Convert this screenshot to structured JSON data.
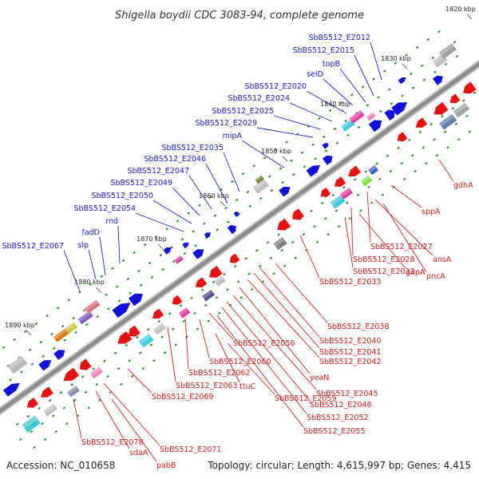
{
  "title": "Shigella boydii CDC 3083-94, complete genome",
  "accession": "Accession: NC_010658",
  "topology": "Topology: circular; Length: 4,615,997 bp; Genes: 4,415",
  "positions": [
    "1820 kbp",
    "1830 kbp",
    "1840 kbp",
    "1850 kbp",
    "1860 kbp",
    "1870 kbp",
    "1880 kbp",
    "1890 kbp"
  ],
  "genes_forward": [
    "SbBS512_E2012",
    "SbBS512_E2015",
    "topB",
    "selD",
    "SbBS512_E2020",
    "SbBS512_E2024",
    "SbBS512_E2025",
    "SbBS512_E2029",
    "mipA",
    "SbBS512_E2035",
    "SbBS512_E2046",
    "SbBS512_E2047",
    "SbBS512_E2049",
    "SbBS512_E2050",
    "SbBS512_E2054",
    "rnd",
    "fadD",
    "slp",
    "SbBS512_E2067"
  ],
  "genes_reverse": [
    "gdhA",
    "sppA",
    "SbBS512_E2027",
    "ansA",
    "SbBS512_E2028",
    "pncA",
    "SbBS512_E2032",
    "gapA",
    "SbBS512_E2033",
    "SbBS512_E2038",
    "SbBS512_E2040",
    "SbBS512_E2041",
    "SbBS512_E2042",
    "yeaN",
    "SbBS512_E2045",
    "SbBS512_E2048",
    "SbBS512_E2052",
    "SbBS512_E2055",
    "SbBS512_E2056",
    "SbBS512_E2060",
    "SbBS512_E2062",
    "SbBS512_E2063",
    "ttuC",
    "SbBS512_E2059",
    "SbBS512_E2069",
    "SbBS512_E2071",
    "SbBS512_E2078",
    "sdaA",
    "pabB"
  ],
  "colors": {
    "forward_label": "#1a1ad6",
    "reverse_label": "#d61a1a",
    "backbone": "#8c8c8c",
    "forward_feature": "#1010e0",
    "reverse_feature": "#e81010",
    "tick": "#2e8b2e"
  }
}
